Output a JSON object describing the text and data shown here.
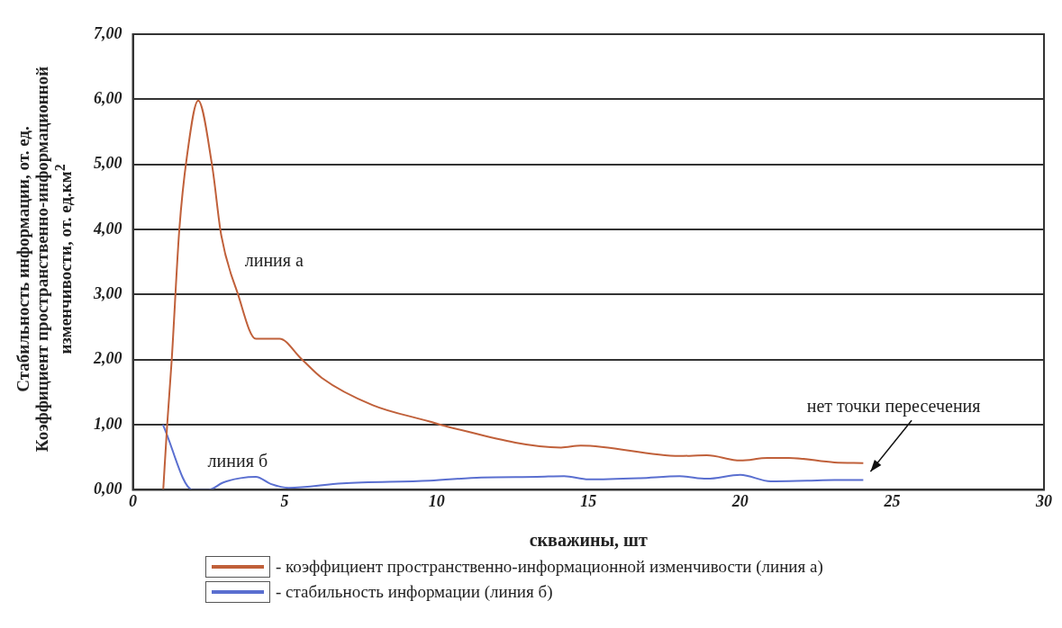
{
  "chart_data": {
    "type": "line",
    "xlabel": "скважины, шт",
    "ylabel": "Стабильность информации, от. ед.\nКоэффициент пространственно-информационной\nизменчивости, от. ед.км$^{2}$",
    "series": [
      {
        "name": "- коэффициент пространственно-информационной изменчивости (линия а)",
        "color": "#c0603a",
        "x": [
          1,
          1.13,
          1.28,
          1.53,
          1.78,
          2.15,
          2.61,
          2.91,
          3.45,
          4.05,
          4.83,
          5.53,
          6.22,
          7.9,
          9.77,
          10.36,
          14.1,
          14.75,
          18.0,
          18.9,
          20.0,
          20.9,
          21.6,
          23.1,
          24.05
        ],
        "values": [
          0,
          1.0,
          2.0,
          4.0,
          5.12,
          5.98,
          4.98,
          3.91,
          3.02,
          2.32,
          2.32,
          2.02,
          1.72,
          1.3,
          1.05,
          0.97,
          0.65,
          0.68,
          0.52,
          0.53,
          0.45,
          0.49,
          0.49,
          0.42,
          0.41
        ]
      },
      {
        "name": "- стабильность информации (линия б)",
        "color": "#5a6fd0",
        "x": [
          0.99,
          1.97,
          2.5,
          2.96,
          3.55,
          4.05,
          4.54,
          5.13,
          6.9,
          9.77,
          11.47,
          13.3,
          14.2,
          15.0,
          16.7,
          18.0,
          18.9,
          20.0,
          21.0,
          22.2,
          23.1,
          24.05
        ],
        "values": [
          1.0,
          0.0,
          0.0,
          0.11,
          0.18,
          0.2,
          0.09,
          0.03,
          0.1,
          0.14,
          0.19,
          0.2,
          0.21,
          0.16,
          0.18,
          0.21,
          0.17,
          0.23,
          0.13,
          0.14,
          0.15,
          0.15
        ]
      }
    ],
    "xlim": [
      0,
      30
    ],
    "xticks": [
      0,
      5,
      10,
      15,
      20,
      25,
      30
    ],
    "ylim": [
      0,
      7
    ],
    "yticks": [
      {
        "value": 0,
        "label": "0,00"
      },
      {
        "value": 1,
        "label": "1,00"
      },
      {
        "value": 2,
        "label": "2,00"
      },
      {
        "value": 3,
        "label": "3,00"
      },
      {
        "value": 4,
        "label": "4,00"
      },
      {
        "value": 5,
        "label": "5,00"
      },
      {
        "value": 6,
        "label": "6,00"
      },
      {
        "value": 7,
        "label": "7,00"
      }
    ],
    "grid": "y",
    "legend": "bottom",
    "marker": "none",
    "line_style": "solid",
    "annotations": [
      "линия а",
      "линия б",
      "нет точки пересечения"
    ]
  }
}
